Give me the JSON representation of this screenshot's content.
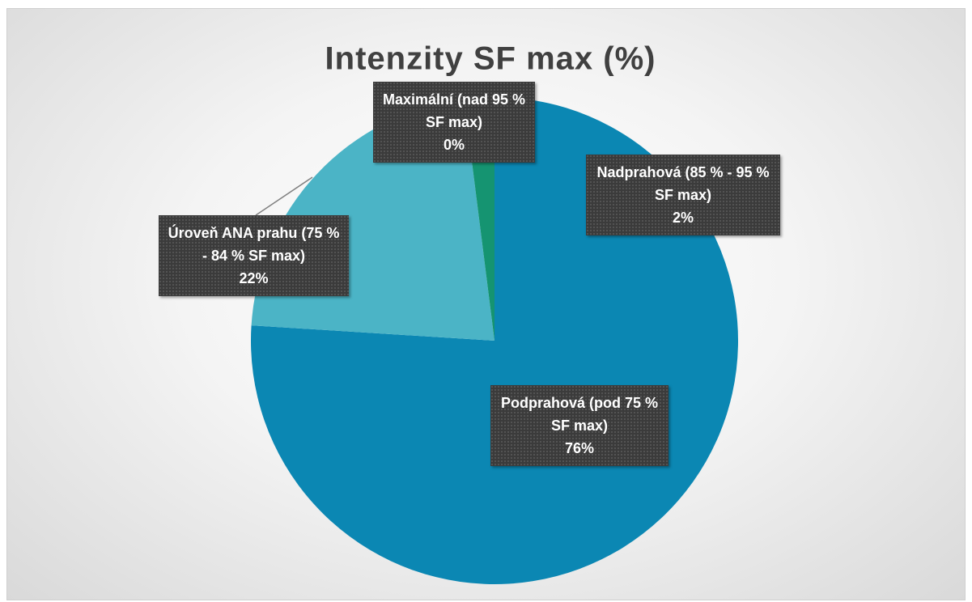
{
  "chart_data": {
    "type": "pie",
    "title": "Intenzity SF max (%)",
    "categories": [
      "Podprahová (pod 75 % SF max)",
      "Úroveň ANA prahu (75 % - 84 % SF max)",
      "Maximální (nad 95 % SF max)",
      "Nadprahová (85 % - 95 % SF max)"
    ],
    "values": [
      76,
      22,
      0,
      2
    ],
    "value_labels": [
      "76%",
      "22%",
      "0%",
      "2%"
    ],
    "colors": [
      "#0b87b3",
      "#4bb4c6",
      "#27a08a",
      "#159471"
    ]
  }
}
